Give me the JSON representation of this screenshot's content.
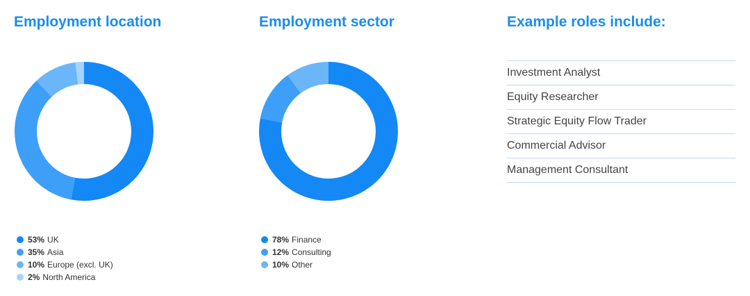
{
  "colors": {
    "heading": "#1a8cf0",
    "palette": [
      "#1488f5",
      "#3d9ff8",
      "#6bb6f9",
      "#a5d3fb"
    ],
    "rule": "#bcdaf5"
  },
  "headings": {
    "location": "Employment location",
    "sector": "Employment sector",
    "roles": "Example roles include:"
  },
  "chart_data": [
    {
      "type": "pie",
      "title": "Employment location",
      "categories": [
        "UK",
        "Asia",
        "Europe (excl. UK)",
        "North America"
      ],
      "values": [
        53,
        35,
        10,
        2
      ],
      "labels": [
        "53%",
        "35%",
        "10%",
        "2%"
      ],
      "colors": [
        "#1488f5",
        "#3d9ff8",
        "#6bb6f9",
        "#a5d3fb"
      ],
      "style": "donut",
      "legend": "bottom-left"
    },
    {
      "type": "pie",
      "title": "Employment sector",
      "categories": [
        "Finance",
        "Consulting",
        "Other"
      ],
      "values": [
        78,
        12,
        10
      ],
      "labels": [
        "78%",
        "12%",
        "10%"
      ],
      "colors": [
        "#1488f5",
        "#3d9ff8",
        "#6bb6f9"
      ],
      "style": "donut",
      "legend": "bottom-left"
    }
  ],
  "roles": [
    "Investment Analyst",
    "Equity Researcher",
    "Strategic Equity Flow Trader",
    "Commercial Advisor",
    "Management Consultant"
  ]
}
